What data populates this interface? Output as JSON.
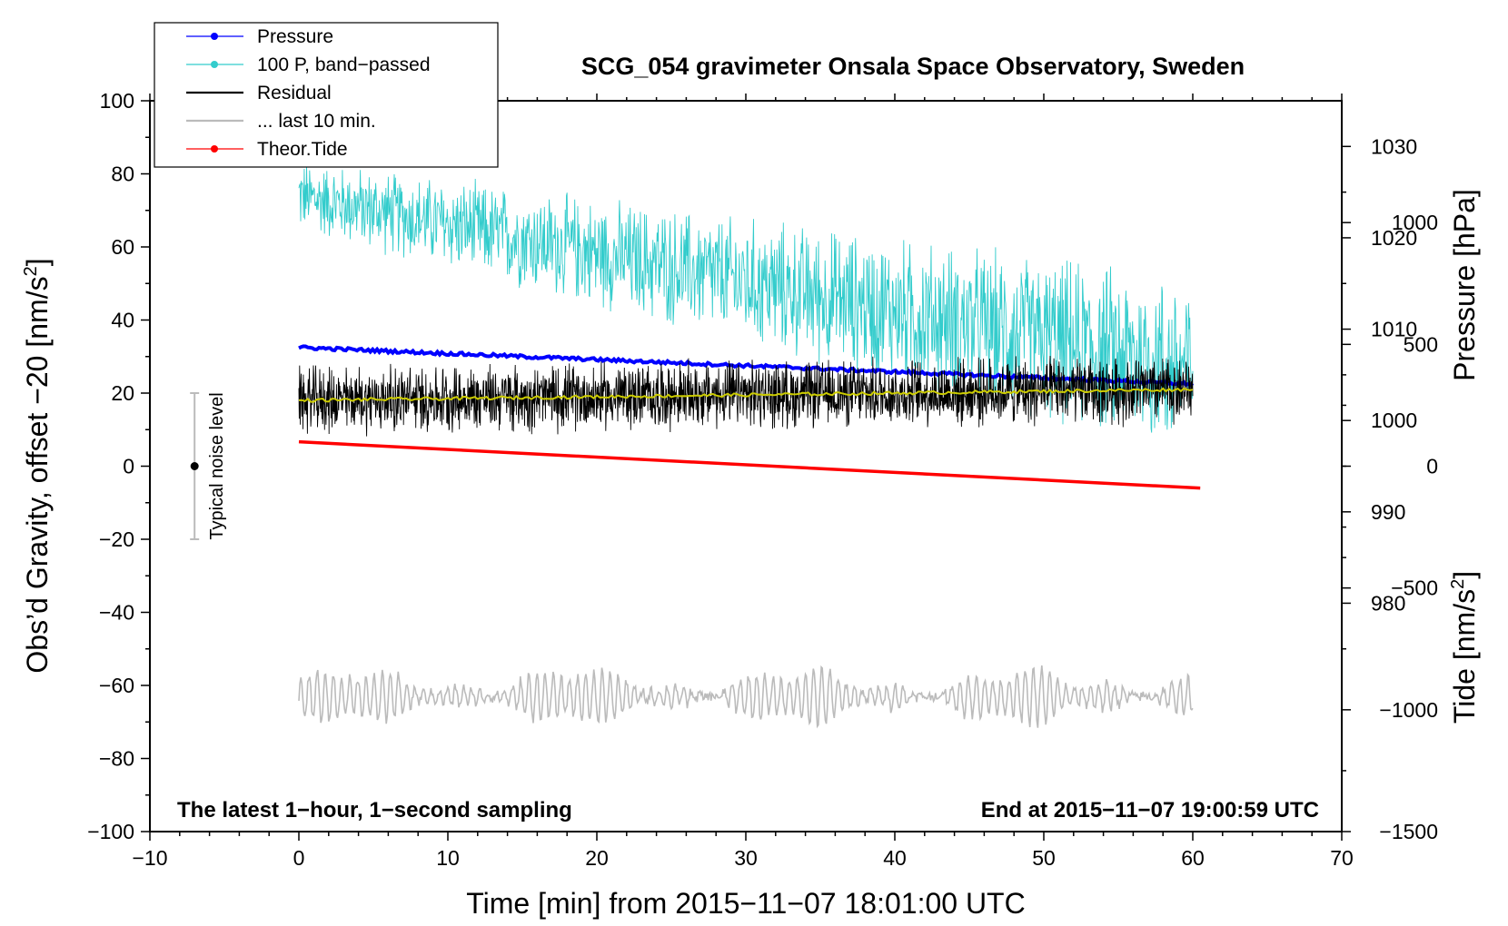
{
  "chart_data": {
    "type": "line",
    "title": "SCG_054 gravimeter Onsala Space Observatory, Sweden",
    "xlabel": "Time [min] from 2015−11−07 18:01:00 UTC",
    "ylabel_left": "Obs’d Gravity, offset −20 [nm/s",
    "ylabel_left_sup": "2",
    "ylabel_left_end": "]",
    "ylabel_right_pressure": "Pressure [hPa]",
    "ylabel_right_tide": "Tide [nm/s",
    "ylabel_right_tide_sup": "2",
    "ylabel_right_tide_end": "]",
    "xlim": [
      -10,
      70
    ],
    "ylim_left": [
      -100,
      100
    ],
    "ylim_pressure": [
      955,
      1035
    ],
    "ylim_tide": [
      -1500,
      1500
    ],
    "x_ticks": [
      -10,
      0,
      10,
      20,
      30,
      40,
      50,
      60,
      70
    ],
    "x_tick_labels": [
      "−10",
      "0",
      "10",
      "20",
      "30",
      "40",
      "50",
      "60",
      "70"
    ],
    "y_left_ticks": [
      -100,
      -80,
      -60,
      -40,
      -20,
      0,
      20,
      40,
      60,
      80,
      100
    ],
    "y_left_tick_labels": [
      "−100",
      "−80",
      "−60",
      "−40",
      "−20",
      "0",
      "20",
      "40",
      "60",
      "80",
      "100"
    ],
    "pressure_ticks": [
      980,
      990,
      1000,
      1010,
      1020,
      1030
    ],
    "pressure_tick_labels": [
      "980",
      "990",
      "1000",
      "1010",
      "1020",
      "1030"
    ],
    "tide_ticks": [
      -1500,
      -1000,
      -500,
      0,
      500,
      1000
    ],
    "tide_tick_labels": [
      "−1500",
      "−1000",
      "−500",
      "0",
      "500",
      "1000"
    ],
    "series": [
      {
        "name": "Pressure",
        "color": "#0000ff",
        "axis": "pressure",
        "x": [
          0,
          60
        ],
        "values": [
          1008,
          1004
        ]
      },
      {
        "name": "100 P, band−passed",
        "color": "#33cccc",
        "axis": "left",
        "x": [
          0,
          60
        ],
        "mean": [
          74,
          27
        ],
        "amplitude": [
          8,
          20
        ]
      },
      {
        "name": "Residual",
        "color": "#000000",
        "axis": "left",
        "x": [
          0,
          60
        ],
        "mean": [
          18,
          21
        ],
        "amplitude": 8
      },
      {
        "name": "smoothed residual",
        "color": "#cccc00",
        "axis": "left",
        "x": [
          0,
          60
        ],
        "values": [
          18,
          21
        ]
      },
      {
        "name": "... last 10 min.",
        "color": "#bbbbbb",
        "axis": "left",
        "x": [
          0,
          60
        ],
        "mean": -63,
        "amplitude": 5
      },
      {
        "name": "Theor.Tide",
        "color": "#ff0000",
        "axis": "tide",
        "x": [
          0,
          60.5
        ],
        "values": [
          100,
          -90
        ]
      }
    ],
    "noise_bar": {
      "label": "Typical noise level",
      "x": -7,
      "center": 0,
      "range": [
        -20,
        20
      ]
    },
    "legend_position": "top-left",
    "annotations": {
      "bottom_left": "The latest 1−hour, 1−second sampling",
      "bottom_right": "End at 2015−11−07 19:00:59 UTC"
    }
  },
  "legend": [
    {
      "label": "Pressure",
      "color": "#0000ff",
      "marker": true
    },
    {
      "label": "100 P, band−passed",
      "color": "#33cccc",
      "marker": true
    },
    {
      "label": "Residual",
      "color": "#000000",
      "marker": false
    },
    {
      "label": "... last 10 min.",
      "color": "#bbbbbb",
      "marker": false
    },
    {
      "label": "Theor.Tide",
      "color": "#ff0000",
      "marker": true
    }
  ]
}
